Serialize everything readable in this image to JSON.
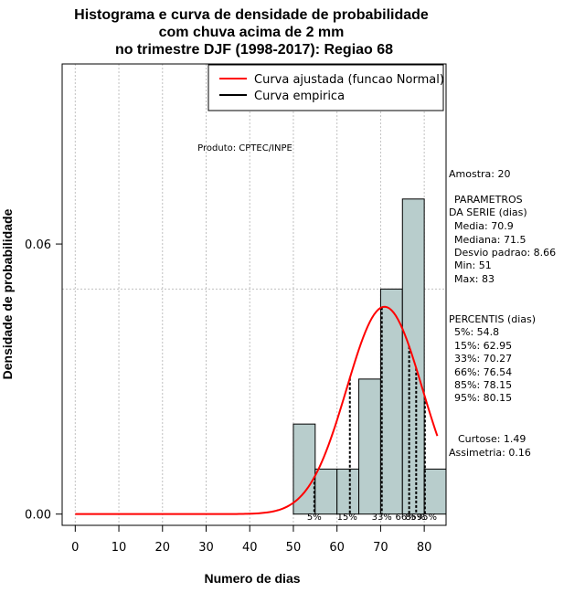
{
  "chart_data": {
    "type": "bar",
    "title_lines": [
      "Histograma e curva de densidade de probabilidade",
      "com chuva acima de 2 mm",
      "no trimestre DJF (1998-2017): Regiao 68"
    ],
    "xlabel": "Numero de dias",
    "ylabel": "Densidade de probabilidade",
    "xlim": [
      -3,
      85
    ],
    "ylim": [
      -0.0025,
      0.1
    ],
    "x_ticks": [
      0,
      10,
      20,
      30,
      40,
      50,
      60,
      70,
      80
    ],
    "y_ticks": [
      0.0,
      0.06
    ],
    "y_tick_labels": [
      "0.00",
      "0.06"
    ],
    "h_gridlines": [
      0.05,
      0.1
    ],
    "histogram": {
      "bin_edges": [
        50,
        55,
        60,
        65,
        70,
        75,
        80,
        85
      ],
      "density": [
        0.02,
        0.01,
        0.01,
        0.03,
        0.05,
        0.07,
        0.01
      ],
      "fill_color": "#b8cdcc"
    },
    "normal_curve": {
      "name": "Curva ajustada (funcao Normal)",
      "mean": 70.9,
      "sd": 8.66,
      "x_range": [
        0,
        83
      ],
      "color": "#ff0000"
    },
    "legend": [
      {
        "label": "Curva ajustada (funcao Normal)",
        "color": "#ff0000"
      },
      {
        "label": "Curva empirica",
        "color": "#000000"
      }
    ],
    "percentile_lines": [
      {
        "label": "5%",
        "x": 54.8
      },
      {
        "label": "15%",
        "x": 62.95
      },
      {
        "label": "33%",
        "x": 70.27
      },
      {
        "label": "66%",
        "x": 76.54
      },
      {
        "label": "85%",
        "x": 78.15
      },
      {
        "label": "95%",
        "x": 80.15
      }
    ],
    "annotation": "Produto: CPTEC/INPE"
  },
  "side_panel": {
    "amostra": "Amostra: 20",
    "param_title_1": "PARAMETROS",
    "param_title_2": "DA SERIE (dias)",
    "media": "Media: 70.9",
    "mediana": "Mediana: 71.5",
    "desvio": "Desvio padrao: 8.66",
    "min": "Min: 51",
    "max": "Max: 83",
    "perc_title": "PERCENTIS (dias)",
    "p5": "5%: 54.8",
    "p15": "15%: 62.95",
    "p33": "33%: 70.27",
    "p66": "66%: 76.54",
    "p85": "85%: 78.15",
    "p95": "95%: 80.15",
    "curtose": "Curtose: 1.49",
    "assimetria": "Assimetria: 0.16"
  }
}
